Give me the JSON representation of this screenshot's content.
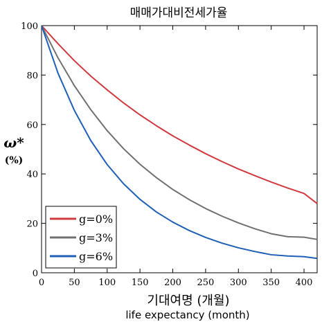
{
  "chart_data": {
    "type": "line",
    "title": "매매가대비전세가율",
    "ylabel": "ω*",
    "ylabel_unit": "(%)",
    "xlabel": "기대여명 (개월)",
    "xlabel_sub": "life expectancy (month)",
    "xlim": [
      0,
      420
    ],
    "ylim": [
      0,
      100
    ],
    "xticks": [
      0,
      50,
      100,
      150,
      200,
      250,
      300,
      350,
      400
    ],
    "yticks": [
      0,
      20,
      40,
      60,
      80,
      100
    ],
    "grid": false,
    "legend_position": "bottom-left",
    "x": [
      0,
      25,
      50,
      75,
      100,
      125,
      150,
      175,
      200,
      225,
      250,
      275,
      300,
      325,
      350,
      375,
      400,
      420
    ],
    "series": [
      {
        "name": "g=0%",
        "color": "#d1393e",
        "values": [
          100,
          92.7,
          85.8,
          79.6,
          74.0,
          68.7,
          63.9,
          59.5,
          55.4,
          51.7,
          48.2,
          45.0,
          42.0,
          39.3,
          36.7,
          34.3,
          32.1,
          28.0
        ]
      },
      {
        "name": "g=3%",
        "color": "#707070",
        "values": [
          100,
          87.0,
          75.7,
          66.0,
          57.5,
          50.2,
          43.9,
          38.5,
          33.7,
          29.6,
          26.0,
          22.9,
          20.2,
          17.8,
          15.8,
          14.6,
          14.4,
          13.5
        ]
      },
      {
        "name": "g=6%",
        "color": "#1f5fb5",
        "values": [
          100,
          80.8,
          65.7,
          53.5,
          43.8,
          36.0,
          29.7,
          24.6,
          20.5,
          17.1,
          14.3,
          12.0,
          10.1,
          8.6,
          7.3,
          6.8,
          6.5,
          5.8
        ]
      }
    ]
  }
}
